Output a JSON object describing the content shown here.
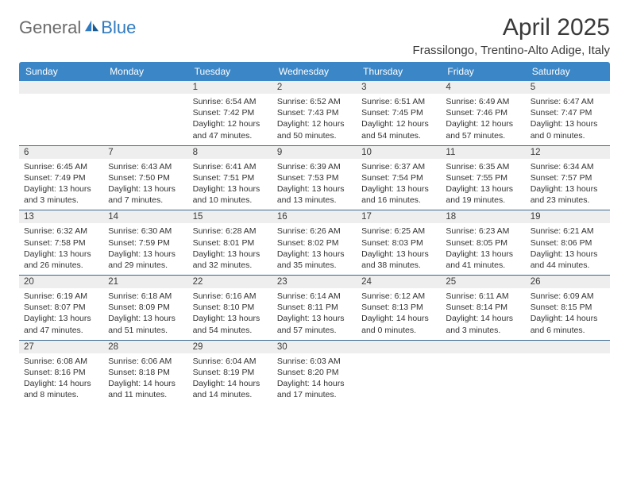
{
  "brand": {
    "text_gray": "General",
    "text_blue": "Blue"
  },
  "title": "April 2025",
  "location": "Frassilongo, Trentino-Alto Adige, Italy",
  "colors": {
    "header_bg": "#3b86c6",
    "header_text": "#ffffff",
    "week_divider": "#3b6a93",
    "daynum_bg": "#eeeeee",
    "logo_gray": "#6b6b6b",
    "logo_blue": "#2f7ac0",
    "body_text": "#333333",
    "title_text": "#3a3a3a",
    "page_bg": "#ffffff"
  },
  "fonts": {
    "title_size_pt": 22,
    "location_size_pt": 11,
    "dayheader_size_pt": 9,
    "cell_size_pt": 8,
    "logo_size_pt": 16
  },
  "days_of_week": [
    "Sunday",
    "Monday",
    "Tuesday",
    "Wednesday",
    "Thursday",
    "Friday",
    "Saturday"
  ],
  "weeks": [
    [
      null,
      null,
      {
        "n": "1",
        "sr": "6:54 AM",
        "ss": "7:42 PM",
        "dl": "12 hours and 47 minutes."
      },
      {
        "n": "2",
        "sr": "6:52 AM",
        "ss": "7:43 PM",
        "dl": "12 hours and 50 minutes."
      },
      {
        "n": "3",
        "sr": "6:51 AM",
        "ss": "7:45 PM",
        "dl": "12 hours and 54 minutes."
      },
      {
        "n": "4",
        "sr": "6:49 AM",
        "ss": "7:46 PM",
        "dl": "12 hours and 57 minutes."
      },
      {
        "n": "5",
        "sr": "6:47 AM",
        "ss": "7:47 PM",
        "dl": "13 hours and 0 minutes."
      }
    ],
    [
      {
        "n": "6",
        "sr": "6:45 AM",
        "ss": "7:49 PM",
        "dl": "13 hours and 3 minutes."
      },
      {
        "n": "7",
        "sr": "6:43 AM",
        "ss": "7:50 PM",
        "dl": "13 hours and 7 minutes."
      },
      {
        "n": "8",
        "sr": "6:41 AM",
        "ss": "7:51 PM",
        "dl": "13 hours and 10 minutes."
      },
      {
        "n": "9",
        "sr": "6:39 AM",
        "ss": "7:53 PM",
        "dl": "13 hours and 13 minutes."
      },
      {
        "n": "10",
        "sr": "6:37 AM",
        "ss": "7:54 PM",
        "dl": "13 hours and 16 minutes."
      },
      {
        "n": "11",
        "sr": "6:35 AM",
        "ss": "7:55 PM",
        "dl": "13 hours and 19 minutes."
      },
      {
        "n": "12",
        "sr": "6:34 AM",
        "ss": "7:57 PM",
        "dl": "13 hours and 23 minutes."
      }
    ],
    [
      {
        "n": "13",
        "sr": "6:32 AM",
        "ss": "7:58 PM",
        "dl": "13 hours and 26 minutes."
      },
      {
        "n": "14",
        "sr": "6:30 AM",
        "ss": "7:59 PM",
        "dl": "13 hours and 29 minutes."
      },
      {
        "n": "15",
        "sr": "6:28 AM",
        "ss": "8:01 PM",
        "dl": "13 hours and 32 minutes."
      },
      {
        "n": "16",
        "sr": "6:26 AM",
        "ss": "8:02 PM",
        "dl": "13 hours and 35 minutes."
      },
      {
        "n": "17",
        "sr": "6:25 AM",
        "ss": "8:03 PM",
        "dl": "13 hours and 38 minutes."
      },
      {
        "n": "18",
        "sr": "6:23 AM",
        "ss": "8:05 PM",
        "dl": "13 hours and 41 minutes."
      },
      {
        "n": "19",
        "sr": "6:21 AM",
        "ss": "8:06 PM",
        "dl": "13 hours and 44 minutes."
      }
    ],
    [
      {
        "n": "20",
        "sr": "6:19 AM",
        "ss": "8:07 PM",
        "dl": "13 hours and 47 minutes."
      },
      {
        "n": "21",
        "sr": "6:18 AM",
        "ss": "8:09 PM",
        "dl": "13 hours and 51 minutes."
      },
      {
        "n": "22",
        "sr": "6:16 AM",
        "ss": "8:10 PM",
        "dl": "13 hours and 54 minutes."
      },
      {
        "n": "23",
        "sr": "6:14 AM",
        "ss": "8:11 PM",
        "dl": "13 hours and 57 minutes."
      },
      {
        "n": "24",
        "sr": "6:12 AM",
        "ss": "8:13 PM",
        "dl": "14 hours and 0 minutes."
      },
      {
        "n": "25",
        "sr": "6:11 AM",
        "ss": "8:14 PM",
        "dl": "14 hours and 3 minutes."
      },
      {
        "n": "26",
        "sr": "6:09 AM",
        "ss": "8:15 PM",
        "dl": "14 hours and 6 minutes."
      }
    ],
    [
      {
        "n": "27",
        "sr": "6:08 AM",
        "ss": "8:16 PM",
        "dl": "14 hours and 8 minutes."
      },
      {
        "n": "28",
        "sr": "6:06 AM",
        "ss": "8:18 PM",
        "dl": "14 hours and 11 minutes."
      },
      {
        "n": "29",
        "sr": "6:04 AM",
        "ss": "8:19 PM",
        "dl": "14 hours and 14 minutes."
      },
      {
        "n": "30",
        "sr": "6:03 AM",
        "ss": "8:20 PM",
        "dl": "14 hours and 17 minutes."
      },
      null,
      null,
      null
    ]
  ],
  "labels": {
    "sunrise_prefix": "Sunrise: ",
    "sunset_prefix": "Sunset: ",
    "daylight_prefix": "Daylight: "
  }
}
